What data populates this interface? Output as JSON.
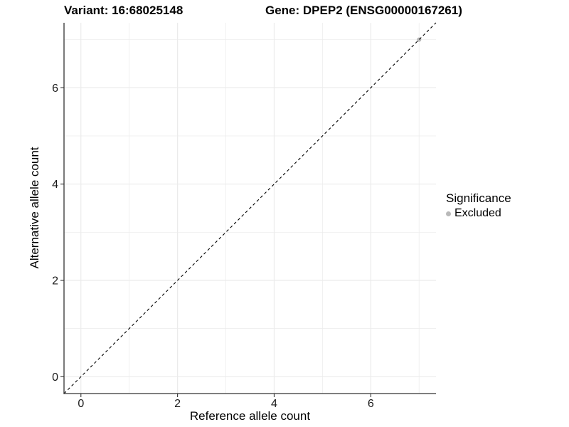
{
  "figure": {
    "title_left": "Variant: 16:68025148",
    "title_right": "Gene: DPEP2 (ENSG00000167261)"
  },
  "chart_data": {
    "type": "scatter",
    "title": "Variant: 16:68025148    Gene: DPEP2 (ENSG00000167261)",
    "xlabel": "Reference allele count",
    "ylabel": "Alternative allele count",
    "xlim": [
      -0.35,
      7.35
    ],
    "ylim": [
      -0.35,
      7.35
    ],
    "x_major_ticks": [
      0,
      2,
      4,
      6
    ],
    "y_major_ticks": [
      0,
      2,
      4,
      6
    ],
    "x_minor_ticks": [
      1,
      3,
      5,
      7
    ],
    "y_minor_ticks": [
      1,
      3,
      5,
      7
    ],
    "grid": true,
    "series": [
      {
        "name": "Excluded",
        "points": [
          {
            "x": 7,
            "y": 7
          }
        ]
      }
    ],
    "reference_line": {
      "kind": "abline",
      "slope": 1,
      "intercept": 0,
      "style": "dashed"
    },
    "legend": {
      "title": "Significance",
      "position": "right",
      "entries": [
        {
          "label": "Excluded",
          "color": "#b9b9b9",
          "marker": "circle"
        }
      ]
    },
    "colors": {
      "background": "#ffffff",
      "grid": "#ebebeb",
      "axis_line": "#333333",
      "tick_text": "#1a1a1a",
      "title_text": "#000000",
      "point": "#b9b9b9",
      "reference_line": "#000000"
    }
  }
}
